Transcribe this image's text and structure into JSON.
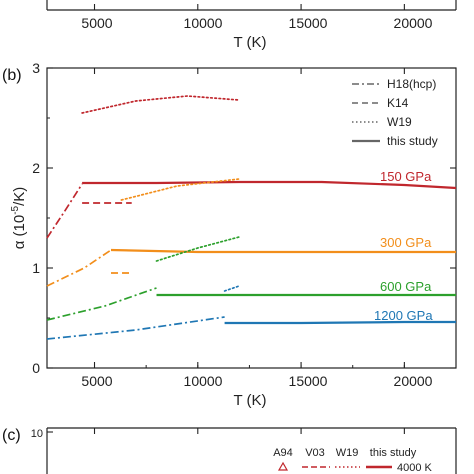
{
  "colors": {
    "p150": "#c0272d",
    "p300": "#f28e1b",
    "p600": "#2ca02c",
    "p1200": "#1f77b4",
    "axis": "#222222"
  },
  "panel_top": {
    "x_tick_labels": [
      "5000",
      "10000",
      "15000",
      "20000"
    ],
    "xlabel": "T (K)"
  },
  "panel_b": {
    "label": "(b)",
    "ylabel_main": "α (10",
    "ylabel_exp": "-5",
    "ylabel_end": "/K)",
    "y_tick_labels": [
      "0",
      "1",
      "2",
      "3"
    ],
    "x_tick_labels": [
      "5000",
      "10000",
      "15000",
      "20000"
    ],
    "xlabel": "T (K)",
    "legend": [
      "H18(hcp)",
      "K14",
      "W19",
      "this study"
    ],
    "pressure_labels": [
      "150 GPa",
      "300 GPa",
      "600 GPa",
      "1200 GPa"
    ]
  },
  "panel_c": {
    "label": "(c)",
    "y_tick_label": "10",
    "legend_headers": [
      "A94",
      "V03",
      "W19",
      "this study"
    ],
    "legend_row_label": "4000 K"
  },
  "chart_data": {
    "type": "line",
    "xlabel": "T (K)",
    "ylabel": "α (10-5/K)",
    "xlim": [
      2700,
      22500
    ],
    "ylim": [
      0,
      3
    ],
    "x_ticks": [
      5000,
      10000,
      15000,
      20000
    ],
    "y_ticks": [
      0,
      1,
      2,
      3
    ],
    "legend_position": "top-right",
    "series": [
      {
        "name": "this study",
        "label": "150 GPa",
        "color_key": "p150",
        "style": "solid",
        "x": [
          4400,
          8000,
          12000,
          16000,
          20000,
          22500
        ],
        "y": [
          1.85,
          1.85,
          1.86,
          1.86,
          1.83,
          1.8
        ]
      },
      {
        "name": "H18(hcp)",
        "label": "150 GPa",
        "color_key": "p150",
        "style": "dashdot",
        "x": [
          2700,
          3500,
          4400
        ],
        "y": [
          1.3,
          1.55,
          1.84
        ]
      },
      {
        "name": "K14",
        "label": "150 GPa",
        "color_key": "p150",
        "style": "dashed",
        "x": [
          4400,
          6800
        ],
        "y": [
          1.65,
          1.65
        ]
      },
      {
        "name": "W19",
        "label": "150 GPa",
        "color_key": "p150",
        "style": "dotted",
        "x": [
          4400,
          7000,
          9500,
          12000
        ],
        "y": [
          2.55,
          2.67,
          2.72,
          2.68
        ]
      },
      {
        "name": "W19",
        "label": "150 GPa",
        "color_key": "p300",
        "style": "dotted",
        "x": [
          6300,
          9000,
          12000
        ],
        "y": [
          1.68,
          1.82,
          1.89
        ]
      },
      {
        "name": "this study",
        "label": "300 GPa",
        "color_key": "p300",
        "style": "solid",
        "x": [
          5800,
          10000,
          15000,
          22500
        ],
        "y": [
          1.18,
          1.16,
          1.16,
          1.16
        ]
      },
      {
        "name": "H18(hcp)",
        "label": "300 GPa",
        "color_key": "p300",
        "style": "dashdot",
        "x": [
          2700,
          4500,
          5800
        ],
        "y": [
          0.82,
          1.0,
          1.18
        ]
      },
      {
        "name": "K14",
        "label": "300 GPa",
        "color_key": "p300",
        "style": "dashed",
        "x": [
          5800,
          6800
        ],
        "y": [
          0.95,
          0.95
        ]
      },
      {
        "name": "W19",
        "label": "300 GPa",
        "color_key": "p600",
        "style": "dotted",
        "x": [
          8000,
          10000,
          12000
        ],
        "y": [
          1.07,
          1.2,
          1.31
        ]
      },
      {
        "name": "this study",
        "label": "600 GPa",
        "color_key": "p600",
        "style": "solid",
        "x": [
          8000,
          12000,
          16000,
          22500
        ],
        "y": [
          0.73,
          0.73,
          0.73,
          0.73
        ]
      },
      {
        "name": "H18(hcp)",
        "label": "600 GPa",
        "color_key": "p600",
        "style": "dashdot",
        "x": [
          2700,
          5500,
          8000
        ],
        "y": [
          0.48,
          0.62,
          0.8
        ]
      },
      {
        "name": "W19",
        "label": "600 GPa",
        "color_key": "p1200",
        "style": "dotted",
        "x": [
          11300,
          12000
        ],
        "y": [
          0.77,
          0.82
        ]
      },
      {
        "name": "this study",
        "label": "1200 GPa",
        "color_key": "p1200",
        "style": "solid",
        "x": [
          11300,
          15000,
          20000,
          22500
        ],
        "y": [
          0.45,
          0.45,
          0.46,
          0.46
        ]
      },
      {
        "name": "H18(hcp)",
        "label": "1200 GPa",
        "color_key": "p1200",
        "style": "dashdot",
        "x": [
          2700,
          7000,
          11300
        ],
        "y": [
          0.29,
          0.38,
          0.51
        ]
      }
    ]
  }
}
